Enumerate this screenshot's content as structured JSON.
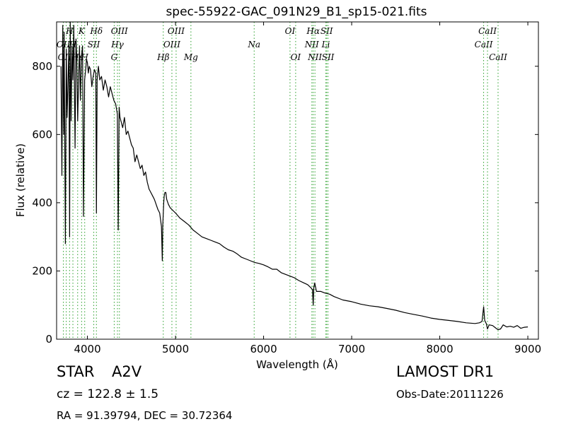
{
  "chart_data": {
    "type": "line",
    "title": "spec-55922-GAC_091N29_B1_sp15-021.fits",
    "xlabel": "Wavelength (Å)",
    "ylabel": "Flux (relative)",
    "xlim": [
      3650,
      9120
    ],
    "ylim": [
      0,
      930
    ],
    "xticks": [
      4000,
      5000,
      6000,
      7000,
      8000,
      9000
    ],
    "yticks": [
      0,
      200,
      400,
      600,
      800
    ],
    "grid": false,
    "spectrum_color": "#000000",
    "line_marker_color": "#2ca02c",
    "series": [
      {
        "values_x": [
          3700,
          3710,
          3720,
          3730,
          3735,
          3740,
          3750,
          3760,
          3770,
          3780,
          3790,
          3798,
          3805,
          3815,
          3825,
          3835,
          3845,
          3860,
          3870,
          3880,
          3889,
          3900,
          3910,
          3920,
          3933,
          3945,
          3955,
          3968,
          3980,
          3990,
          4000,
          4010,
          4020,
          4035,
          4050,
          4065,
          4080,
          4095,
          4102,
          4110,
          4125,
          4140,
          4160,
          4180,
          4200,
          4220,
          4240,
          4260,
          4280,
          4300,
          4320,
          4340,
          4350,
          4360,
          4370,
          4380,
          4400,
          4420,
          4440,
          4460,
          4480,
          4500,
          4520,
          4540,
          4560,
          4580,
          4600,
          4620,
          4640,
          4660,
          4680,
          4700,
          4720,
          4740,
          4760,
          4780,
          4800,
          4820,
          4840,
          4850,
          4855,
          4861,
          4866,
          4872,
          4880,
          4890,
          4900,
          4920,
          4940,
          4960,
          4980,
          5000,
          5050,
          5100,
          5150,
          5200,
          5250,
          5300,
          5350,
          5400,
          5450,
          5500,
          5550,
          5600,
          5650,
          5700,
          5750,
          5800,
          5850,
          5900,
          5950,
          6000,
          6050,
          6100,
          6150,
          6200,
          6250,
          6300,
          6350,
          6400,
          6450,
          6500,
          6540,
          6555,
          6563,
          6570,
          6580,
          6600,
          6650,
          6700,
          6750,
          6800,
          6900,
          7000,
          7100,
          7200,
          7300,
          7400,
          7500,
          7600,
          7700,
          7800,
          7900,
          8000,
          8100,
          8200,
          8300,
          8400,
          8450,
          8480,
          8498,
          8510,
          8530,
          8542,
          8560,
          8600,
          8640,
          8662,
          8690,
          8720,
          8760,
          8800,
          8840,
          8880,
          8920,
          8960,
          9000
        ],
        "values_y": [
          800,
          480,
          920,
          600,
          900,
          700,
          280,
          850,
          650,
          760,
          860,
          300,
          940,
          640,
          860,
          760,
          920,
          560,
          880,
          820,
          640,
          760,
          860,
          700,
          830,
          860,
          360,
          760,
          790,
          820,
          810,
          780,
          800,
          790,
          740,
          770,
          790,
          780,
          370,
          760,
          800,
          760,
          770,
          730,
          760,
          740,
          710,
          740,
          720,
          700,
          690,
          660,
          320,
          680,
          650,
          640,
          620,
          650,
          600,
          610,
          590,
          570,
          560,
          520,
          540,
          520,
          500,
          510,
          480,
          490,
          460,
          440,
          430,
          420,
          410,
          395,
          380,
          370,
          330,
          230,
          330,
          370,
          400,
          420,
          430,
          430,
          410,
          395,
          385,
          380,
          375,
          370,
          355,
          345,
          335,
          320,
          310,
          300,
          295,
          290,
          285,
          280,
          270,
          262,
          258,
          250,
          240,
          235,
          230,
          225,
          222,
          218,
          212,
          205,
          205,
          195,
          190,
          185,
          180,
          172,
          166,
          160,
          150,
          145,
          100,
          150,
          165,
          140,
          140,
          135,
          132,
          125,
          115,
          110,
          103,
          98,
          95,
          90,
          85,
          78,
          73,
          68,
          62,
          58,
          55,
          52,
          48,
          46,
          48,
          52,
          95,
          55,
          45,
          30,
          42,
          40,
          32,
          28,
          30,
          42,
          36,
          38,
          35,
          40,
          32,
          35,
          36
        ]
      }
    ],
    "line_markers": [
      {
        "label": "OII",
        "x": 3727,
        "row": 1
      },
      {
        "label": "OIII",
        "x": 3760,
        "row": 2
      },
      {
        "label": "H",
        "x": 3797,
        "row": 0
      },
      {
        "label": "H",
        "x": 3835,
        "row": 1
      },
      {
        "label": "Hε",
        "x": 3889,
        "row": 2
      },
      {
        "label": "K",
        "x": 3934,
        "row": 0
      },
      {
        "label": "H",
        "x": 3969,
        "row": 2
      },
      {
        "label": "SII",
        "x": 4072,
        "row": 1
      },
      {
        "label": "Hδ",
        "x": 4102,
        "row": 0
      },
      {
        "label": "G",
        "x": 4304,
        "row": 2
      },
      {
        "label": "Hγ",
        "x": 4341,
        "row": 1
      },
      {
        "label": "OIII",
        "x": 4363,
        "row": 0
      },
      {
        "label": "Hβ",
        "x": 4861,
        "row": 2
      },
      {
        "label": "OIII",
        "x": 4959,
        "row": 1
      },
      {
        "label": "OIII",
        "x": 5007,
        "row": 0
      },
      {
        "label": "Mg",
        "x": 5175,
        "row": 2
      },
      {
        "label": "Na",
        "x": 5893,
        "row": 1
      },
      {
        "label": "OI",
        "x": 6300,
        "row": 0
      },
      {
        "label": "OI",
        "x": 6364,
        "row": 2
      },
      {
        "label": "NII",
        "x": 6548,
        "row": 1
      },
      {
        "label": "Hα",
        "x": 6563,
        "row": 0
      },
      {
        "label": "NII",
        "x": 6583,
        "row": 2
      },
      {
        "label": "Li",
        "x": 6707,
        "row": 1
      },
      {
        "label": "SII",
        "x": 6716,
        "row": 0
      },
      {
        "label": "SII",
        "x": 6731,
        "row": 2
      },
      {
        "label": "CaII",
        "x": 8498,
        "row": 1
      },
      {
        "label": "CaII",
        "x": 8542,
        "row": 0
      },
      {
        "label": "CaII",
        "x": 8662,
        "row": 2
      }
    ]
  },
  "info": {
    "class_label": "STAR",
    "subclass_label": "A2V",
    "redshift_text": "cz = 122.8  ± 1.5",
    "coords_text": "RA = 91.39794, DEC = 30.72364",
    "survey_text": "LAMOST DR1",
    "obs_date_text": "Obs-Date:20111226"
  }
}
